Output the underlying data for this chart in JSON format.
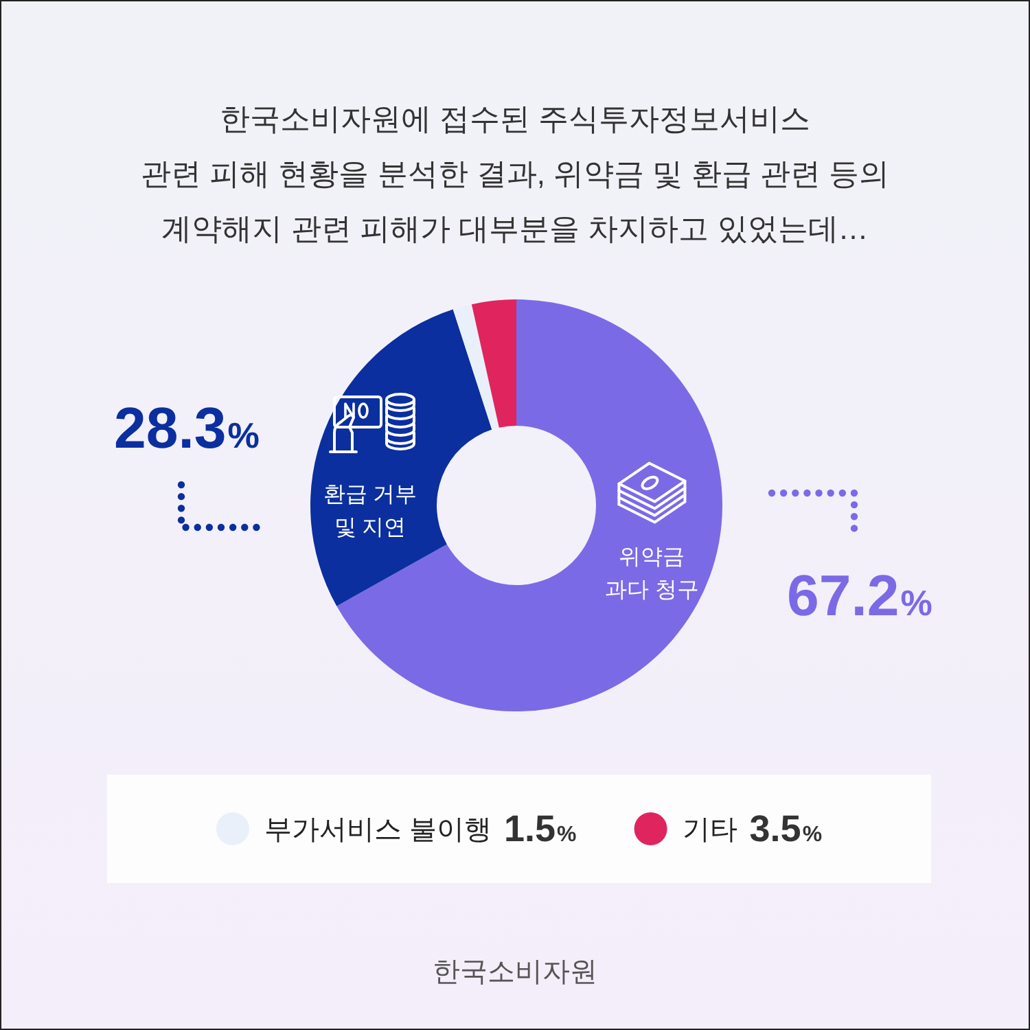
{
  "chart_data": {
    "type": "donut",
    "title": "한국소비자원에 접수된 주식투자정보서비스\n관련 피해 현황을 분석한 결과, 위약금 및 환급 관련 등의\n계약해지 관련 피해가 대부분을 차지하고 있었는데…",
    "categories": [
      "위약금\n과다 청구",
      "환급 거부\n및 지연",
      "부가서비스 불이행",
      "기타"
    ],
    "values": [
      67.2,
      28.3,
      1.5,
      3.5
    ],
    "colors": [
      "#7b6ae6",
      "#0b2f9f",
      "#e9f0f9",
      "#e0245e"
    ],
    "value_labels": [
      "67.2%",
      "28.3%",
      "1.5%",
      "3.5%"
    ],
    "legend": "bottom",
    "annotations": [
      "한국소비자원"
    ]
  }
}
